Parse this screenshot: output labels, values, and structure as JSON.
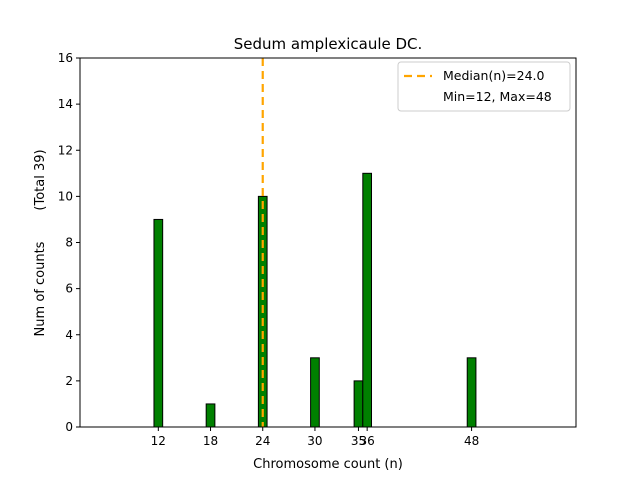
{
  "chart_data": {
    "type": "bar",
    "title": "Sedum amplexicaule DC.",
    "xlabel": "Chromosome count (n)",
    "ylabel_main": "Num of counts",
    "ylabel_total": "(Total 39)",
    "xlim": [
      3,
      60
    ],
    "ylim": [
      0,
      16
    ],
    "x_ticks": [
      12,
      18,
      24,
      30,
      35,
      36,
      48
    ],
    "y_ticks": [
      0,
      2,
      4,
      6,
      8,
      10,
      12,
      14,
      16
    ],
    "bar_width": 1,
    "bars": [
      {
        "x": 12,
        "value": 9
      },
      {
        "x": 18,
        "value": 1
      },
      {
        "x": 24,
        "value": 10
      },
      {
        "x": 30,
        "value": 3
      },
      {
        "x": 35,
        "value": 2
      },
      {
        "x": 36,
        "value": 11
      },
      {
        "x": 48,
        "value": 3
      }
    ],
    "baseline_extent": [
      12,
      51
    ],
    "median": 24.0,
    "legend": {
      "placement": "top-right",
      "entries": [
        "Median(n)=24.0",
        "Min=12, Max=48"
      ]
    },
    "colors": {
      "bar_fill": "#008000",
      "bar_edge": "#000000",
      "median_line": "#ffa500"
    }
  }
}
